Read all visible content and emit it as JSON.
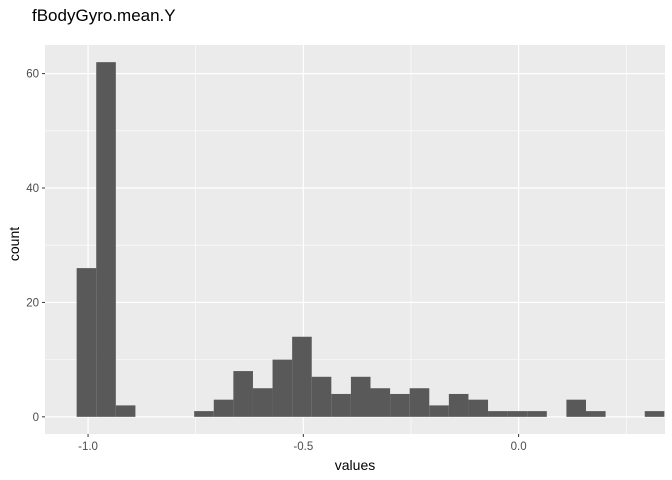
{
  "chart_data": {
    "type": "histogram",
    "title": "fBodyGyro.mean.Y",
    "xlabel": "values",
    "ylabel": "count",
    "xlim": [
      -1.1,
      0.34
    ],
    "ylim": [
      -3,
      65
    ],
    "x_ticks": [
      -1.0,
      -0.5,
      0.0
    ],
    "x_tick_labels": [
      "-1.0",
      "-0.5",
      "0.0"
    ],
    "y_ticks": [
      0,
      20,
      40,
      60
    ],
    "y_tick_labels": [
      "0",
      "20",
      "40",
      "60"
    ],
    "grid": true,
    "panel_background": "#ebebeb",
    "bar_color": "#595959",
    "bin_width": 0.0455,
    "bins": [
      {
        "start": -1.0265,
        "count": 26
      },
      {
        "start": -0.981,
        "count": 62
      },
      {
        "start": -0.9355,
        "count": 2
      },
      {
        "start": -0.89,
        "count": 0
      },
      {
        "start": -0.8445,
        "count": 0
      },
      {
        "start": -0.799,
        "count": 0
      },
      {
        "start": -0.7535,
        "count": 1
      },
      {
        "start": -0.708,
        "count": 3
      },
      {
        "start": -0.6625,
        "count": 8
      },
      {
        "start": -0.617,
        "count": 5
      },
      {
        "start": -0.5715,
        "count": 10
      },
      {
        "start": -0.526,
        "count": 14
      },
      {
        "start": -0.4805,
        "count": 7
      },
      {
        "start": -0.435,
        "count": 4
      },
      {
        "start": -0.3895,
        "count": 7
      },
      {
        "start": -0.344,
        "count": 5
      },
      {
        "start": -0.2985,
        "count": 4
      },
      {
        "start": -0.253,
        "count": 5
      },
      {
        "start": -0.2075,
        "count": 2
      },
      {
        "start": -0.162,
        "count": 4
      },
      {
        "start": -0.1165,
        "count": 3
      },
      {
        "start": -0.071,
        "count": 1
      },
      {
        "start": -0.0255,
        "count": 1
      },
      {
        "start": 0.02,
        "count": 1
      },
      {
        "start": 0.0655,
        "count": 0
      },
      {
        "start": 0.111,
        "count": 3
      },
      {
        "start": 0.1565,
        "count": 1
      },
      {
        "start": 0.202,
        "count": 0
      },
      {
        "start": 0.2475,
        "count": 0
      },
      {
        "start": 0.293,
        "count": 1
      }
    ]
  }
}
